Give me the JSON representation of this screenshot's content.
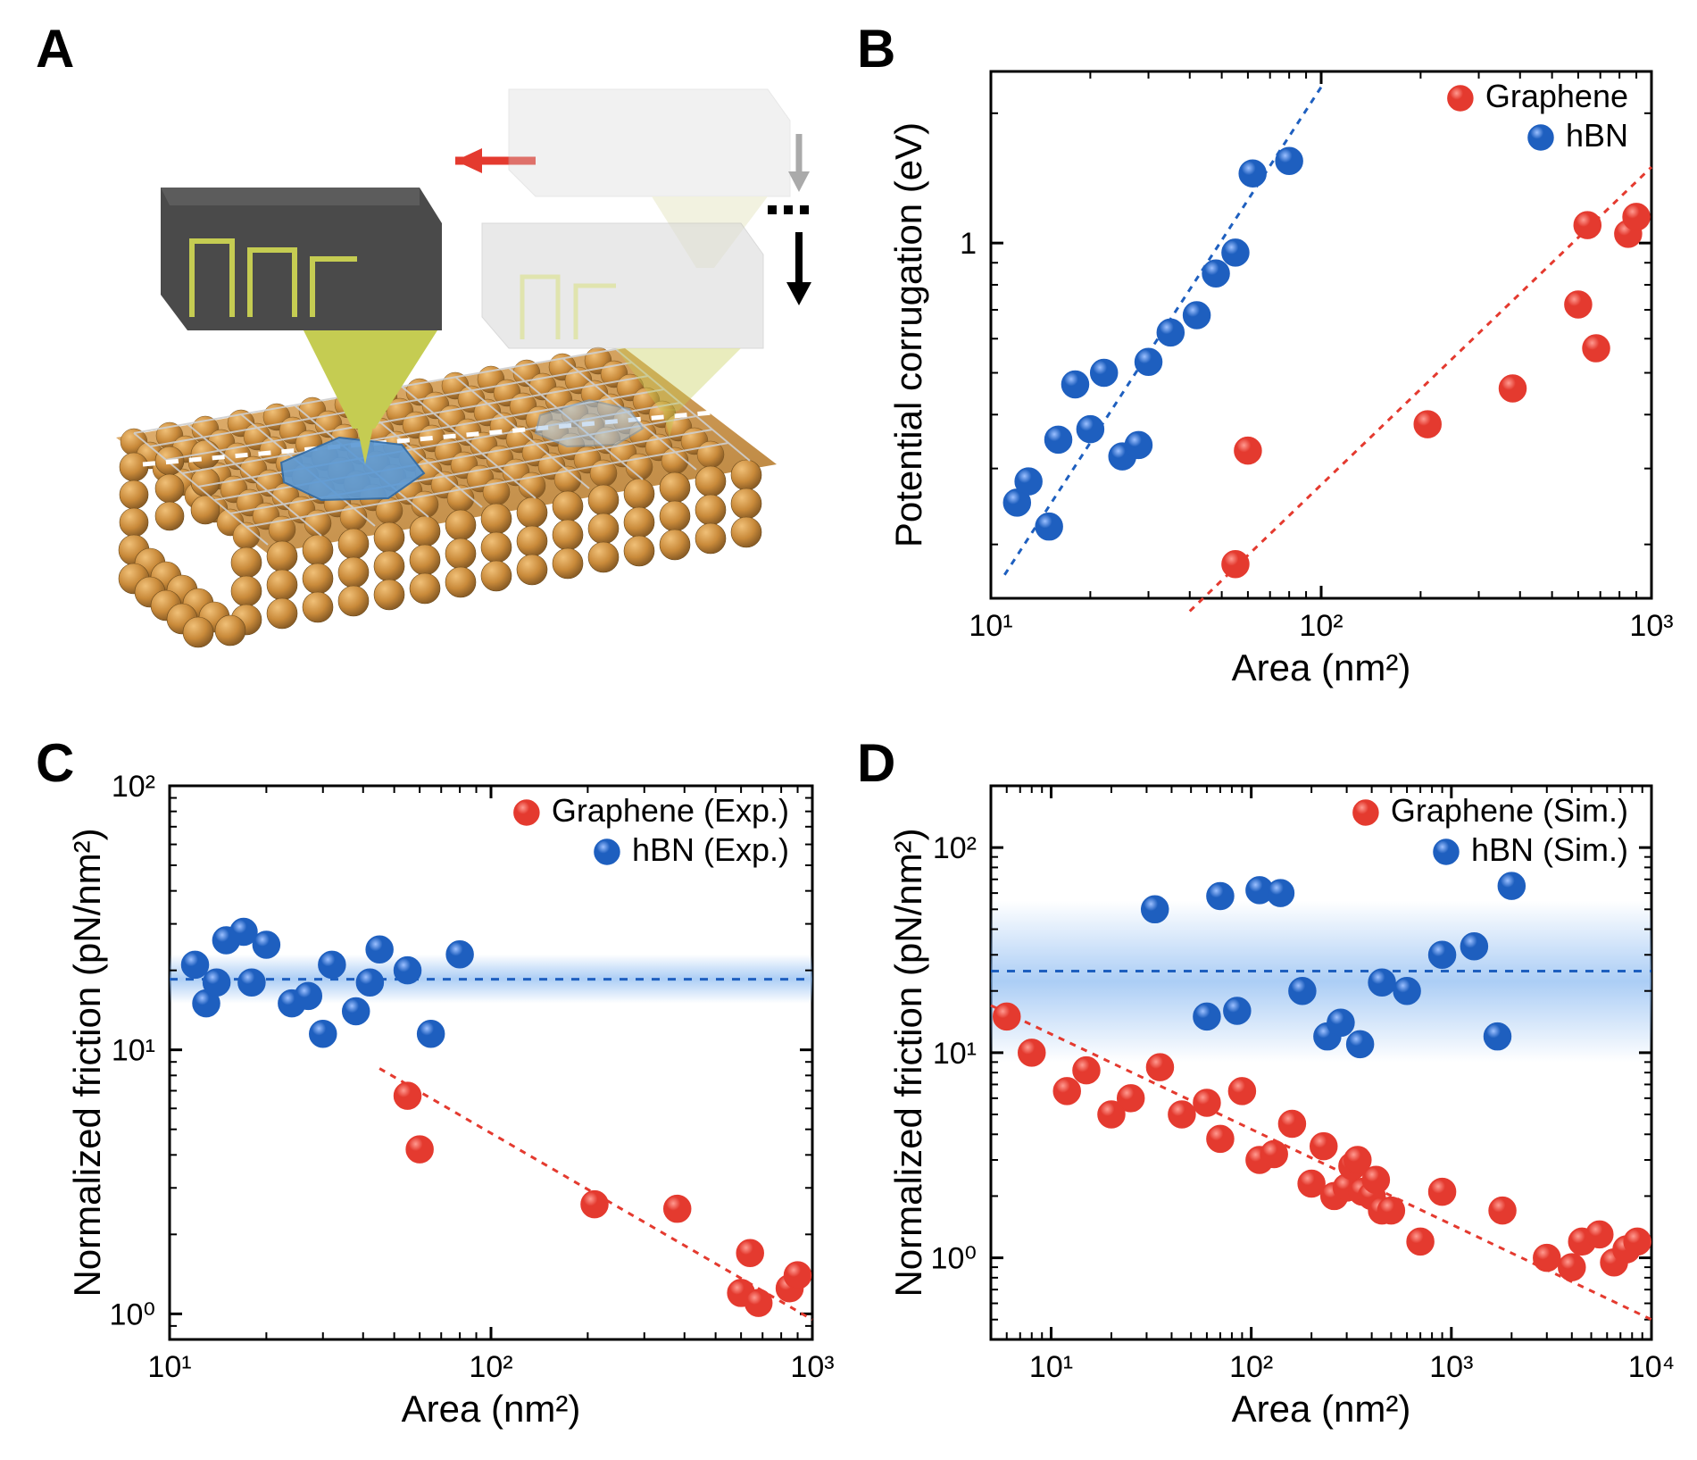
{
  "panels": {
    "A": {
      "label": "A"
    },
    "B": {
      "label": "B",
      "type": "scatter",
      "xlabel": "Area (nm²)",
      "ylabel": "Potential corrugation (eV)",
      "xscale": "log",
      "yscale": "log",
      "xlim": [
        10,
        1000
      ],
      "ylim": [
        0.15,
        2.5
      ],
      "xticks": [
        10,
        100,
        1000
      ],
      "xtick_labels": [
        "10¹",
        "10²",
        "10³"
      ],
      "yticks_major": [
        1
      ],
      "ytick_labels": [
        "1"
      ],
      "legend": [
        {
          "label": "Graphene",
          "color": "#e43a2f",
          "marker": "circle"
        },
        {
          "label": "hBN",
          "color": "#1e5fbf",
          "marker": "circle"
        }
      ],
      "series_hbn": {
        "color": "#1e5fbf",
        "marker_size": 15,
        "points": [
          [
            12,
            0.25
          ],
          [
            13,
            0.28
          ],
          [
            15,
            0.22
          ],
          [
            16,
            0.35
          ],
          [
            18,
            0.47
          ],
          [
            20,
            0.37
          ],
          [
            22,
            0.5
          ],
          [
            25,
            0.32
          ],
          [
            28,
            0.34
          ],
          [
            30,
            0.53
          ],
          [
            35,
            0.62
          ],
          [
            42,
            0.68
          ],
          [
            48,
            0.85
          ],
          [
            55,
            0.95
          ],
          [
            62,
            1.45
          ],
          [
            80,
            1.55
          ]
        ],
        "trend": {
          "x0": 11,
          "y0": 0.17,
          "x1": 100,
          "y1": 2.3,
          "dash": "7,7",
          "width": 3
        }
      },
      "series_graphene": {
        "color": "#e43a2f",
        "marker_size": 15,
        "points": [
          [
            55,
            0.18
          ],
          [
            60,
            0.33
          ],
          [
            210,
            0.38
          ],
          [
            380,
            0.46
          ],
          [
            600,
            0.72
          ],
          [
            640,
            1.1
          ],
          [
            680,
            0.57
          ],
          [
            850,
            1.05
          ],
          [
            900,
            1.15
          ]
        ],
        "trend": {
          "x0": 40,
          "y0": 0.14,
          "x1": 1000,
          "y1": 1.5,
          "dash": "7,7",
          "width": 3
        }
      },
      "background_color": "#ffffff",
      "axis_color": "#000000",
      "label_fontsize": 40,
      "tick_fontsize": 32
    },
    "C": {
      "label": "C",
      "type": "scatter",
      "xlabel": "Area (nm²)",
      "ylabel": "Normalized friction (pN/nm²)",
      "xscale": "log",
      "yscale": "log",
      "xlim": [
        10,
        1000
      ],
      "ylim": [
        0.8,
        100
      ],
      "xticks": [
        10,
        100,
        1000
      ],
      "xtick_labels": [
        "10¹",
        "10²",
        "10³"
      ],
      "yticks_major": [
        1,
        10,
        100
      ],
      "ytick_labels": [
        "10⁰",
        "10¹",
        "10²"
      ],
      "legend": [
        {
          "label": "Graphene (Exp.)",
          "color": "#e43a2f",
          "marker": "circle"
        },
        {
          "label": "hBN (Exp.)",
          "color": "#1e5fbf",
          "marker": "circle"
        }
      ],
      "hbn_band": {
        "y": 18.5,
        "y_lo": 15,
        "y_hi": 23,
        "color": "#7fb3f0",
        "line_color": "#1e5fbf"
      },
      "series_hbn": {
        "color": "#1e5fbf",
        "marker_size": 15,
        "points": [
          [
            12,
            21
          ],
          [
            13,
            15
          ],
          [
            14,
            18
          ],
          [
            15,
            26
          ],
          [
            17,
            28
          ],
          [
            18,
            18
          ],
          [
            20,
            25
          ],
          [
            24,
            15
          ],
          [
            27,
            16
          ],
          [
            30,
            11.5
          ],
          [
            32,
            21
          ],
          [
            38,
            14
          ],
          [
            42,
            18
          ],
          [
            45,
            24
          ],
          [
            55,
            20
          ],
          [
            65,
            11.5
          ],
          [
            80,
            23
          ]
        ]
      },
      "series_graphene": {
        "color": "#e43a2f",
        "marker_size": 15,
        "points": [
          [
            55,
            6.7
          ],
          [
            60,
            4.2
          ],
          [
            210,
            2.6
          ],
          [
            380,
            2.5
          ],
          [
            600,
            1.2
          ],
          [
            640,
            1.7
          ],
          [
            680,
            1.1
          ],
          [
            850,
            1.25
          ],
          [
            900,
            1.4
          ]
        ],
        "trend": {
          "x0": 45,
          "y0": 8.5,
          "x1": 1000,
          "y1": 0.95,
          "dash": "7,7",
          "width": 3
        }
      },
      "background_color": "#ffffff"
    },
    "D": {
      "label": "D",
      "type": "scatter",
      "xlabel": "Area (nm²)",
      "ylabel": "Normalized friction (pN/nm²)",
      "xscale": "log",
      "yscale": "log",
      "xlim": [
        5,
        10000
      ],
      "ylim": [
        0.4,
        200
      ],
      "xticks": [
        10,
        100,
        1000,
        10000
      ],
      "xtick_labels": [
        "10¹",
        "10²",
        "10³",
        "10⁴"
      ],
      "yticks_major": [
        1,
        10,
        100
      ],
      "ytick_labels": [
        "10⁰",
        "10¹",
        "10²"
      ],
      "legend": [
        {
          "label": "Graphene (Sim.)",
          "color": "#e43a2f",
          "marker": "circle"
        },
        {
          "label": "hBN (Sim.)",
          "color": "#1e5fbf",
          "marker": "circle"
        }
      ],
      "hbn_band": {
        "y": 25,
        "y_lo": 9,
        "y_hi": 55,
        "color": "#7fb3f0",
        "line_color": "#1e5fbf"
      },
      "series_hbn": {
        "color": "#1e5fbf",
        "marker_size": 15,
        "points": [
          [
            33,
            50
          ],
          [
            60,
            15
          ],
          [
            70,
            58
          ],
          [
            85,
            16
          ],
          [
            110,
            62
          ],
          [
            140,
            60
          ],
          [
            180,
            20
          ],
          [
            240,
            12
          ],
          [
            280,
            14
          ],
          [
            350,
            11
          ],
          [
            450,
            22
          ],
          [
            600,
            20
          ],
          [
            900,
            30
          ],
          [
            1300,
            33
          ],
          [
            1700,
            12
          ],
          [
            2000,
            65
          ]
        ]
      },
      "series_graphene": {
        "color": "#e43a2f",
        "marker_size": 15,
        "points": [
          [
            6,
            15
          ],
          [
            8,
            10
          ],
          [
            12,
            6.5
          ],
          [
            15,
            8.2
          ],
          [
            20,
            5.0
          ],
          [
            25,
            6.0
          ],
          [
            35,
            8.5
          ],
          [
            45,
            5.0
          ],
          [
            60,
            5.7
          ],
          [
            70,
            3.8
          ],
          [
            90,
            6.5
          ],
          [
            110,
            3.0
          ],
          [
            130,
            3.2
          ],
          [
            160,
            4.5
          ],
          [
            200,
            2.3
          ],
          [
            230,
            3.5
          ],
          [
            260,
            2.0
          ],
          [
            300,
            2.2
          ],
          [
            320,
            2.8
          ],
          [
            340,
            3.0
          ],
          [
            360,
            2.1
          ],
          [
            400,
            2.0
          ],
          [
            420,
            2.4
          ],
          [
            450,
            1.7
          ],
          [
            500,
            1.7
          ],
          [
            700,
            1.2
          ],
          [
            900,
            2.1
          ],
          [
            1800,
            1.7
          ],
          [
            3000,
            1.0
          ],
          [
            4000,
            0.9
          ],
          [
            4500,
            1.2
          ],
          [
            5500,
            1.3
          ],
          [
            6500,
            0.95
          ],
          [
            7500,
            1.1
          ],
          [
            8500,
            1.2
          ]
        ],
        "trend": {
          "x0": 5,
          "y0": 17,
          "x1": 10000,
          "y1": 0.5,
          "dash": "7,7",
          "width": 3
        }
      },
      "background_color": "#ffffff"
    }
  },
  "colors": {
    "graphene": "#e43a2f",
    "graphene_shine": "#ff9a90",
    "hbn": "#1e5fbf",
    "hbn_shine": "#9cc0ff",
    "axis": "#000000",
    "band_fill": "#7fb3f0",
    "substrate": "#c98a3a",
    "substrate_top": "#e0a85e",
    "substrate_dark": "#9a6a2f",
    "lattice": "#b8b8b8",
    "flake": "#5d9ad5",
    "cantilever": "#4a4a4a",
    "cantilever_ghost": "#d8d8d8",
    "circuit": "#c5cc52"
  }
}
